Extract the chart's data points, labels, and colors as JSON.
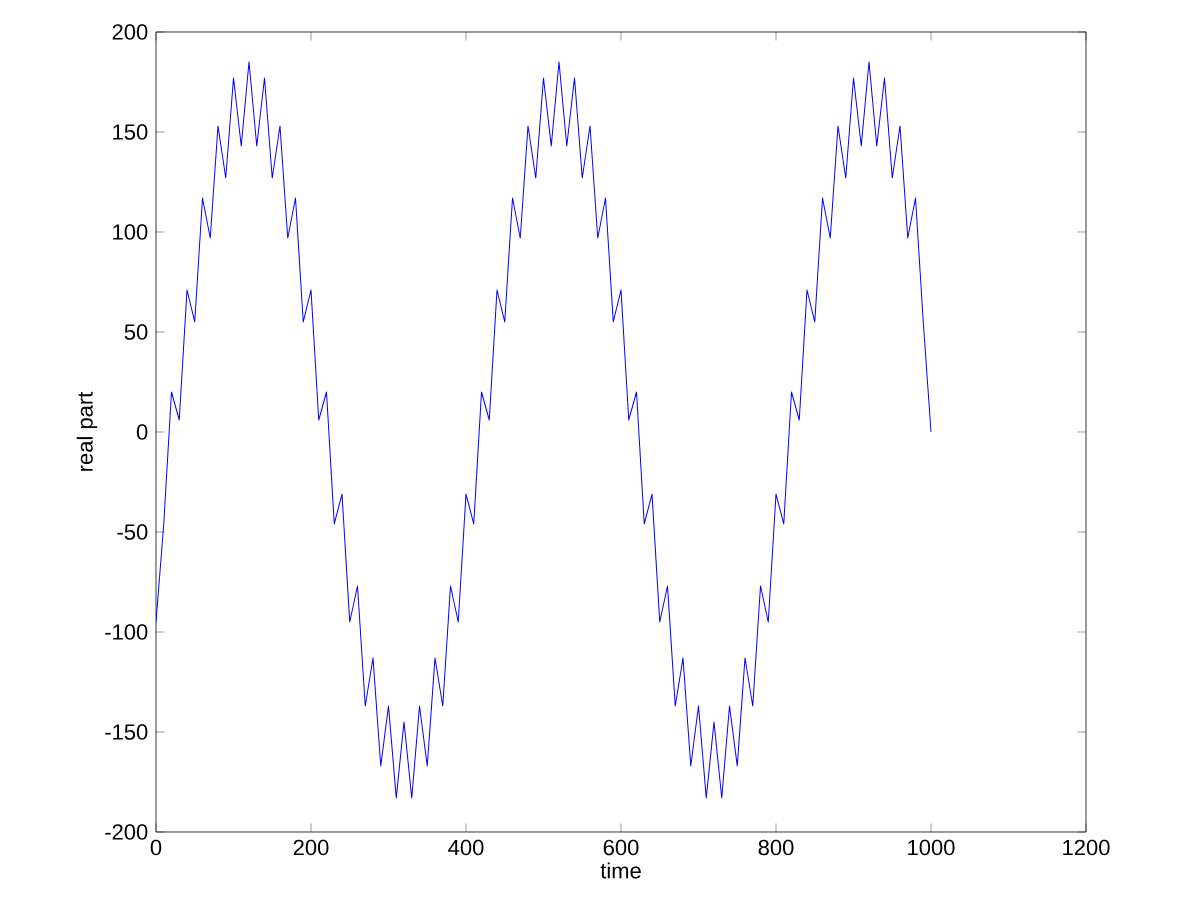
{
  "chart_data": {
    "type": "line",
    "xlabel": "time",
    "ylabel": "real part",
    "xlim": [
      0,
      1200
    ],
    "xticks": [
      0,
      200,
      400,
      600,
      800,
      1000,
      1200
    ],
    "ylim": [
      -200,
      200
    ],
    "yticks": [
      -200,
      -150,
      -100,
      -50,
      0,
      50,
      100,
      150,
      200
    ],
    "grid": false,
    "series": [
      {
        "color": "#0000ff",
        "x": [
          0,
          10,
          20,
          30,
          40,
          50,
          60,
          70,
          80,
          90,
          100,
          110,
          120,
          130,
          140,
          150,
          160,
          170,
          180,
          190,
          200,
          210,
          220,
          230,
          240,
          250,
          260,
          270,
          280,
          290,
          300,
          310,
          320,
          330,
          340,
          350,
          360,
          370,
          380,
          390,
          400,
          410,
          420,
          430,
          440,
          450,
          460,
          470,
          480,
          490,
          500,
          510,
          520,
          530,
          540,
          550,
          560,
          570,
          580,
          590,
          600,
          610,
          620,
          630,
          640,
          650,
          660,
          670,
          680,
          690,
          700,
          710,
          720,
          730,
          740,
          750,
          760,
          770,
          780,
          790,
          800,
          810,
          820,
          830,
          840,
          850,
          860,
          870,
          880,
          890,
          900,
          910,
          920,
          930,
          940,
          950,
          960,
          970,
          980,
          990,
          1000
        ],
        "values": [
          -95,
          -46,
          20,
          6,
          71,
          55,
          117,
          97,
          153,
          127,
          177,
          143,
          185,
          143,
          177,
          127,
          153,
          97,
          117,
          55,
          71,
          6,
          20,
          -46,
          -31,
          -95,
          -77,
          -137,
          -113,
          -167,
          -137,
          -183,
          -145,
          -183,
          -137,
          -167,
          -113,
          -137,
          -77,
          -95,
          -31,
          -46,
          20,
          6,
          71,
          55,
          117,
          97,
          153,
          127,
          177,
          143,
          185,
          143,
          177,
          127,
          153,
          97,
          117,
          55,
          71,
          6,
          20,
          -46,
          -31,
          -95,
          -77,
          -137,
          -113,
          -167,
          -137,
          -183,
          -145,
          -183,
          -137,
          -167,
          -113,
          -137,
          -77,
          -95,
          -31,
          -46,
          20,
          6,
          71,
          55,
          117,
          97,
          153,
          127,
          177,
          143,
          185,
          143,
          177,
          127,
          153,
          97,
          117,
          55,
          0
        ]
      }
    ]
  }
}
